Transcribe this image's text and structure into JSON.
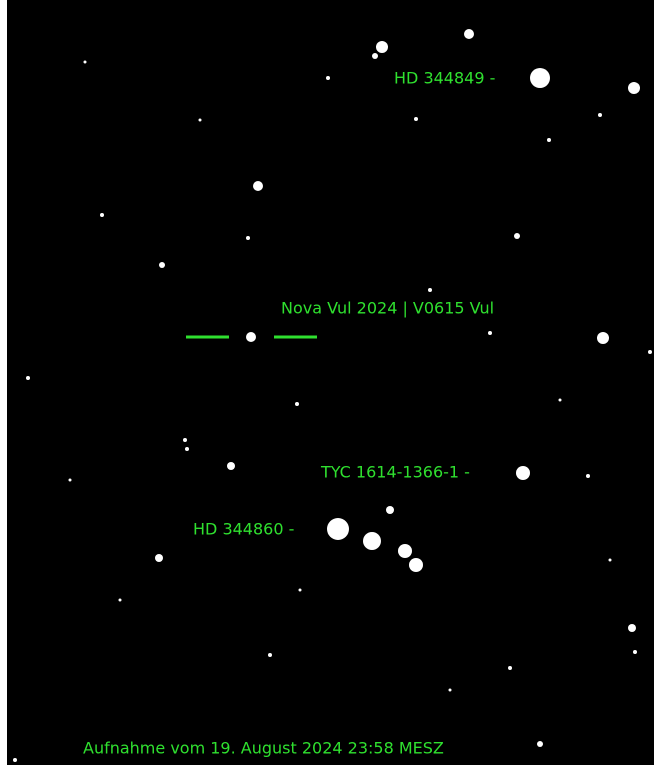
{
  "labels": {
    "hd_344849": "HD 344849 -",
    "nova": "Nova Vul 2024 | V0615 Vul",
    "tyc": "TYC 1614-1366-1 -",
    "hd_344860": "HD 344860 -"
  },
  "caption": "Aufnahme vom 19. August 2024 23:58 MESZ"
}
